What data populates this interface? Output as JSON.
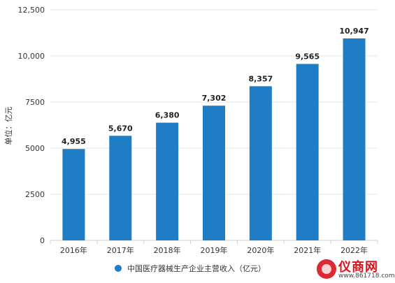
{
  "chart_data": {
    "type": "bar",
    "categories": [
      "2016年",
      "2017年",
      "2018年",
      "2019年",
      "2020年",
      "2021年",
      "2022年"
    ],
    "values": [
      4955,
      5670,
      6380,
      7302,
      8357,
      9565,
      10947
    ],
    "value_labels": [
      "4,955",
      "5,670",
      "6,380",
      "7,302",
      "8,357",
      "9,565",
      "10,947"
    ],
    "ylabel": "单位：亿元",
    "ylim": [
      0,
      12500
    ],
    "yticks": [
      0,
      2500,
      5000,
      7500,
      10000,
      12500
    ],
    "ytick_labels": [
      "0",
      "2500",
      "5000",
      "7500",
      "10,000",
      "12,500"
    ],
    "legend": {
      "label": "中国医疗器械生产企业主营收入（亿元）",
      "position": "bottom"
    },
    "grid": true,
    "bar_color": "#1f7dc6"
  },
  "brand": {
    "name": "仪商网",
    "url": "www.861718.com",
    "color": "#d9121c"
  }
}
